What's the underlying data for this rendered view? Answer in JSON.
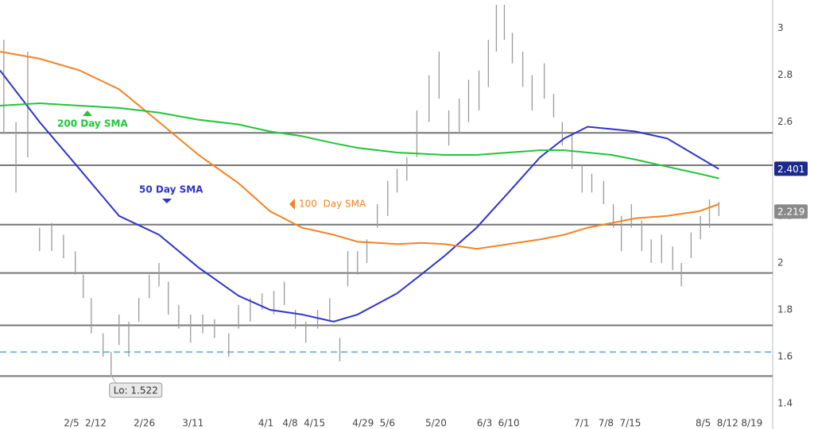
{
  "chart_data": {
    "type": "ohlc",
    "bar_color": "#9a9a9a",
    "x": [
      16.5,
      20,
      23.4,
      26.8,
      30.3,
      33.7,
      37.1,
      39.4,
      41.7,
      45.1,
      47.4,
      49.7,
      52.5,
      55.4,
      58.4,
      61.2,
      63.9,
      66.9,
      70.3,
      73.8,
      77.2,
      81.3,
      84.1,
      87.5,
      90.9,
      94.3,
      97.3,
      100.5,
      103.5,
      106.9,
      110.4,
      113.3,
      115.6,
      118.4,
      121.1,
      124.1,
      127.1,
      129.8,
      132.6,
      135.5,
      139,
      141.9,
      144.7,
      147.7,
      150.4,
      153.4,
      156.1,
      158.4,
      160.7,
      163,
      166,
      168.7,
      172.2,
      174.9,
      177.4,
      180.2,
      183.1,
      185.9,
      189.3,
      192.1,
      194.4,
      197.3,
      200.3,
      203,
      206,
      209.2,
      211.7,
      214.5,
      217.2,
      219.8,
      222.5
    ],
    "high": [
      2.95,
      2.6,
      2.9,
      2.15,
      2.17,
      2.12,
      2.05,
      1.95,
      1.85,
      1.7,
      1.62,
      1.78,
      1.75,
      1.85,
      1.95,
      2.0,
      1.92,
      1.82,
      1.78,
      1.78,
      1.76,
      1.7,
      1.82,
      1.85,
      1.87,
      1.88,
      1.92,
      1.8,
      1.75,
      1.8,
      1.85,
      1.68,
      2.05,
      2.05,
      2.1,
      2.25,
      2.35,
      2.4,
      2.45,
      2.65,
      2.8,
      2.9,
      2.65,
      2.7,
      2.78,
      2.82,
      2.95,
      3.1,
      3.1,
      2.98,
      2.9,
      2.8,
      2.85,
      2.72,
      2.6,
      2.55,
      2.42,
      2.38,
      2.35,
      2.25,
      2.2,
      2.25,
      2.18,
      2.1,
      2.12,
      2.07,
      2.0,
      2.13,
      2.2,
      2.27,
      2.26
    ],
    "low": [
      2.55,
      2.3,
      2.45,
      2.05,
      2.05,
      2.02,
      1.95,
      1.85,
      1.7,
      1.6,
      1.522,
      1.65,
      1.6,
      1.75,
      1.85,
      1.9,
      1.78,
      1.72,
      1.66,
      1.7,
      1.68,
      1.6,
      1.72,
      1.75,
      1.8,
      1.78,
      1.82,
      1.72,
      1.66,
      1.72,
      1.75,
      1.58,
      1.9,
      1.95,
      2.0,
      2.15,
      2.2,
      2.3,
      2.35,
      2.45,
      2.6,
      2.7,
      2.5,
      2.55,
      2.6,
      2.65,
      2.75,
      2.9,
      2.95,
      2.85,
      2.75,
      2.65,
      2.7,
      2.62,
      2.5,
      2.4,
      2.3,
      2.3,
      2.25,
      2.15,
      2.05,
      2.15,
      2.05,
      2.0,
      2.0,
      1.97,
      1.9,
      2.02,
      2.1,
      2.15,
      2.2
    ],
    "ylim": [
      1.36,
      3.12
    ],
    "yticks": [
      1.4,
      1.6,
      1.8,
      2,
      2.2,
      2.4,
      2.6,
      2.8,
      3
    ],
    "xlim": [
      15.4,
      238
    ],
    "xticks": [
      {
        "value": 36,
        "label": "2/5"
      },
      {
        "value": 43,
        "label": "2/12"
      },
      {
        "value": 57,
        "label": "2/26"
      },
      {
        "value": 71,
        "label": "3/11"
      },
      {
        "value": 92,
        "label": "4/1"
      },
      {
        "value": 99,
        "label": "4/8"
      },
      {
        "value": 106,
        "label": "4/15"
      },
      {
        "value": 120,
        "label": "4/29"
      },
      {
        "value": 127,
        "label": "5/6"
      },
      {
        "value": 141,
        "label": "5/20"
      },
      {
        "value": 155,
        "label": "6/3"
      },
      {
        "value": 162,
        "label": "6/10"
      },
      {
        "value": 183,
        "label": "7/1"
      },
      {
        "value": 190,
        "label": "7/8"
      },
      {
        "value": 197,
        "label": "7/15"
      },
      {
        "value": 218,
        "label": "8/5"
      },
      {
        "value": 225,
        "label": "8/12"
      },
      {
        "value": 232,
        "label": "8/19"
      }
    ],
    "sma": {
      "x": [
        15.4,
        26.8,
        38.3,
        49.7,
        61.2,
        72.6,
        84.1,
        93.2,
        102.4,
        111.5,
        118.4,
        129.8,
        136.7,
        143.5,
        152.7,
        161.9,
        171,
        177.9,
        184.7,
        191.6,
        198.5,
        207.6,
        216.8,
        222.5
      ],
      "series": [
        {
          "name": "50 Day SMA",
          "color": "#2f35c8",
          "values": [
            2.82,
            2.6,
            2.4,
            2.2,
            2.12,
            1.98,
            1.86,
            1.8,
            1.78,
            1.75,
            1.78,
            1.87,
            1.95,
            2.03,
            2.15,
            2.3,
            2.45,
            2.53,
            2.58,
            2.57,
            2.56,
            2.53,
            2.45,
            2.4
          ]
        },
        {
          "name": "100  Day SMA",
          "color": "#f58220",
          "values": [
            2.9,
            2.87,
            2.82,
            2.74,
            2.6,
            2.46,
            2.34,
            2.22,
            2.15,
            2.12,
            2.09,
            2.08,
            2.085,
            2.08,
            2.06,
            2.08,
            2.1,
            2.12,
            2.15,
            2.17,
            2.19,
            2.2,
            2.22,
            2.25
          ]
        },
        {
          "name": "200 Day SMA",
          "color": "#22c43a",
          "values": [
            2.67,
            2.68,
            2.67,
            2.66,
            2.64,
            2.61,
            2.59,
            2.56,
            2.54,
            2.51,
            2.49,
            2.47,
            2.465,
            2.46,
            2.46,
            2.47,
            2.48,
            2.48,
            2.47,
            2.46,
            2.44,
            2.41,
            2.38,
            2.36
          ]
        }
      ]
    },
    "levels": [
      2.554,
      2.416,
      2.163,
      1.957,
      1.734,
      1.518
    ],
    "level_color": "#777777",
    "dashed_level": 1.62,
    "dashed_color": "#7cb9e8",
    "price_labels": [
      {
        "value": 2.401,
        "label": "2.401",
        "color": "#1c2a8c"
      },
      {
        "value": 2.219,
        "label": "2.219",
        "color": "#8a8a8a"
      }
    ],
    "low_label": "Lo: 1.522"
  }
}
